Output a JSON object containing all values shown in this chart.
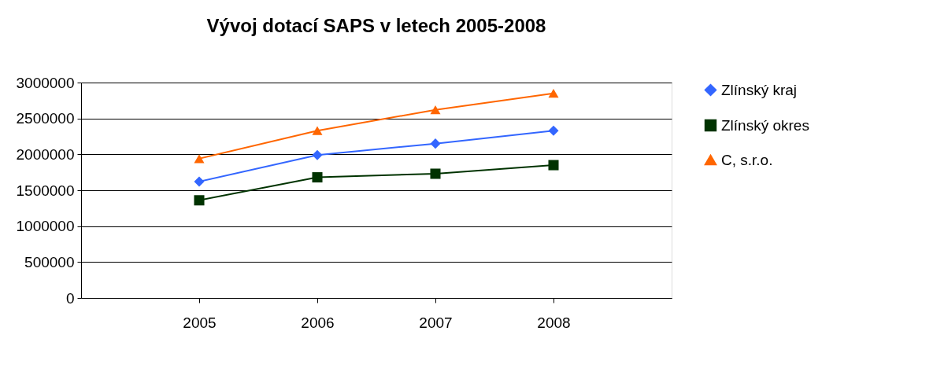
{
  "chart_data": {
    "type": "line",
    "title": "Vývoj dotací SAPS v letech 2005-2008",
    "categories": [
      "2005",
      "2006",
      "2007",
      "2008"
    ],
    "series": [
      {
        "name": "Zlínský kraj",
        "color": "#3366ff",
        "marker": "diamond",
        "values": [
          1620000,
          1990000,
          2150000,
          2330000
        ]
      },
      {
        "name": "Zlínský okres",
        "color": "#003300",
        "marker": "square",
        "values": [
          1360000,
          1680000,
          1730000,
          1850000
        ]
      },
      {
        "name": "C, s.r.o.",
        "color": "#ff6600",
        "marker": "triangle",
        "values": [
          1940000,
          2330000,
          2620000,
          2850000
        ]
      }
    ],
    "ylim": [
      0,
      3000000
    ],
    "yticks": [
      0,
      500000,
      1000000,
      1500000,
      2000000,
      2500000,
      3000000
    ],
    "grid": "y",
    "legend": "right",
    "line_style": "solid"
  }
}
